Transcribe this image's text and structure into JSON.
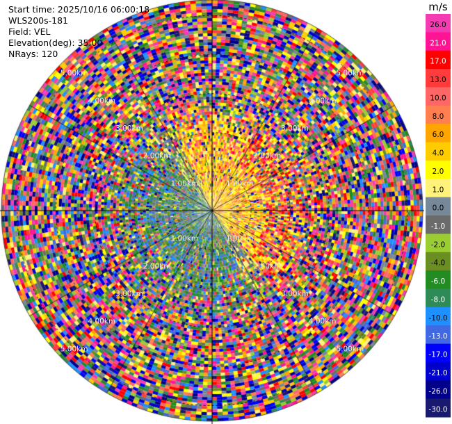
{
  "header": {
    "start_time": "Start time: 2025/10/16 06:00:18",
    "station": "WLS200s-181",
    "field": "Field: VEL",
    "elevation": "Elevation(deg): 35.00",
    "nrays": "NRays: 120"
  },
  "colorbar": {
    "unit": "m/s",
    "ticks": [
      "26.0",
      "21.0",
      "17.0",
      "13.0",
      "10.0",
      "8.0",
      "6.0",
      "4.0",
      "2.0",
      "1.0",
      "0.0",
      "-1.0",
      "-2.0",
      "-4.0",
      "-6.0",
      "-8.0",
      "-10.0",
      "-13.0",
      "-17.0",
      "-21.0",
      "-26.0",
      "-30.0"
    ],
    "colors": [
      "#f33cb4",
      "#ff1493",
      "#ff0000",
      "#ff3b3b",
      "#ff6666",
      "#ff7f50",
      "#ffa500",
      "#ffcc00",
      "#ffff00",
      "#fff27a",
      "#778899",
      "#6b6b6b",
      "#9acd32",
      "#6b8e23",
      "#228b22",
      "#2e8b57",
      "#1e90ff",
      "#4169e1",
      "#0000ff",
      "#0000cd",
      "#00008b",
      "#191970"
    ]
  },
  "chart_data": {
    "type": "heatmap",
    "projection": "polar (PPI)",
    "field": "VEL",
    "elevation_deg": 35.0,
    "n_rays": 120,
    "range_rings": [
      {
        "label": "1.00km",
        "range_km": 1.0
      },
      {
        "label": "2.00km",
        "range_km": 2.0
      },
      {
        "label": "3.00km",
        "range_km": 3.0
      },
      {
        "label": "4.00km",
        "range_km": 4.0
      },
      {
        "label": "5.00km",
        "range_km": 5.0
      }
    ],
    "max_range_km": 5.4,
    "value_range": [
      -30,
      26
    ],
    "pattern_note": "inner ~2.5 km: warm colors (positive) north/east half, green/blue (negative) south/west half; beyond: mostly noise",
    "grid": true
  }
}
